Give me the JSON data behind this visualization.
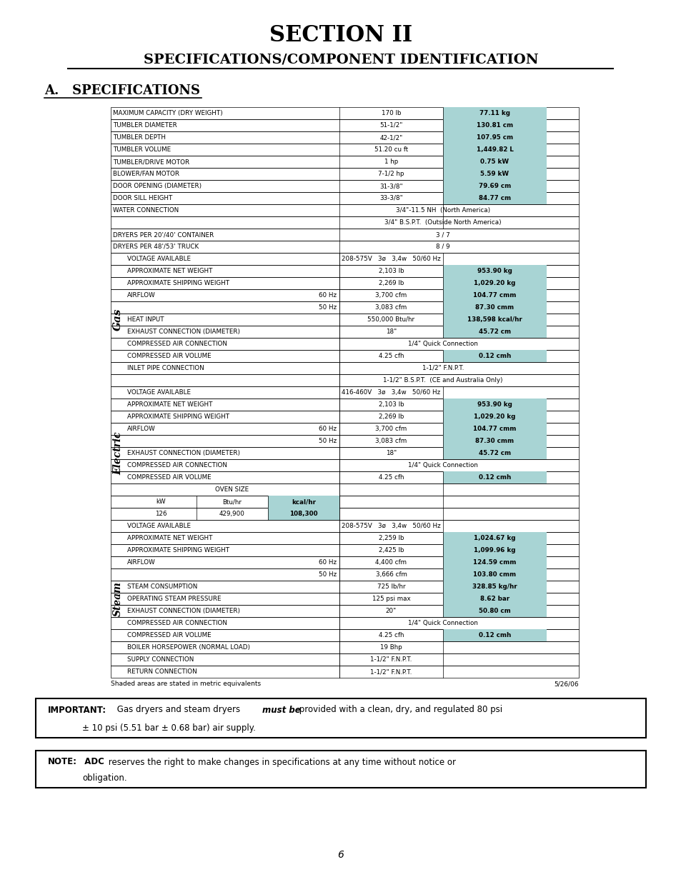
{
  "title1": "SECTION II",
  "title2": "SPECIFICATIONS/COMPONENT IDENTIFICATION",
  "section_title": "A.   SPECIFICATIONS",
  "bg_color": "#ffffff",
  "teal_color": "#a8d4d4",
  "footnote": "Shaded areas are stated in metric equivalents",
  "footnote_date": "5/26/06",
  "page_num": "6",
  "important_line1_a": "IMPORTANT:",
  "important_line1_b": " Gas dryers and steam dryers ",
  "important_line1_c": "must be",
  "important_line1_d": " provided with a clean, dry, and regulated 80 psi",
  "important_line2": "± 10 psi (5.51 bar ± 0.68 bar) air supply.",
  "note_line1_a": "NOTE:",
  "note_line1_b": "  ADC",
  "note_line1_c": " reserves the right to make changes in specifications at any time without notice or",
  "note_line2": "obligation."
}
